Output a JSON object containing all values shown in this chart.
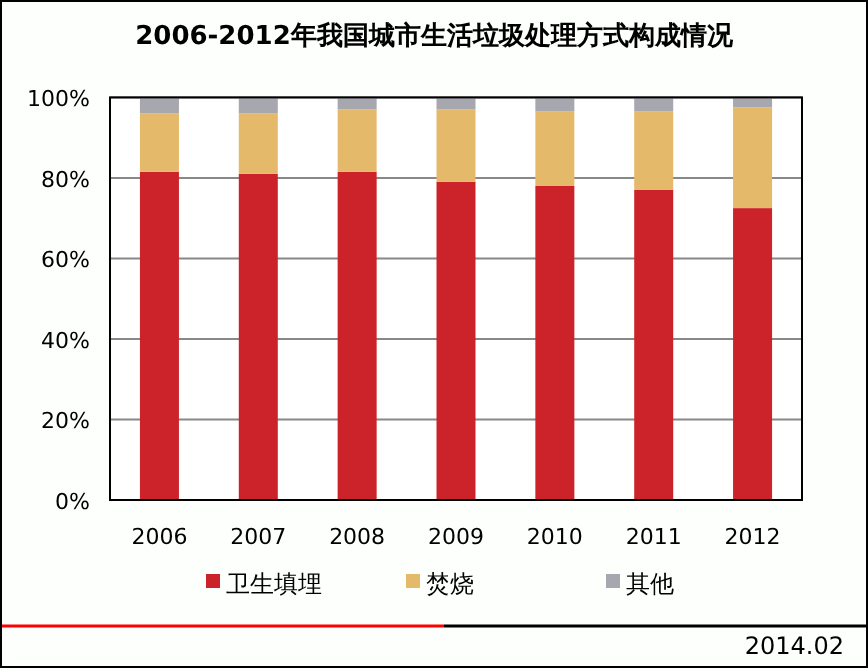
{
  "chart_data": {
    "type": "bar",
    "stacked": true,
    "title": "2006-2012年我国城市生活垃圾处理方式构成情况",
    "categories": [
      "2006",
      "2007",
      "2008",
      "2009",
      "2010",
      "2011",
      "2012"
    ],
    "series": [
      {
        "name": "卫生填埋",
        "color": "#cc2229",
        "values": [
          81.5,
          81,
          81.5,
          79,
          78,
          77,
          72.5
        ]
      },
      {
        "name": "焚烧",
        "color": "#e5b96a",
        "values": [
          14.5,
          15,
          15.5,
          18,
          18.5,
          19.5,
          25
        ]
      },
      {
        "name": "其他",
        "color": "#a7a7b0",
        "values": [
          4,
          4,
          3,
          3,
          3.5,
          3.5,
          2.5
        ]
      }
    ],
    "ylim": [
      0,
      100
    ],
    "yticks": [
      {
        "value": 0,
        "label": "0%"
      },
      {
        "value": 20,
        "label": "20%"
      },
      {
        "value": 40,
        "label": "40%"
      },
      {
        "value": 60,
        "label": "60%"
      },
      {
        "value": 80,
        "label": "80%"
      },
      {
        "value": 100,
        "label": "100%"
      }
    ],
    "grid": "y",
    "legend": "bottom",
    "annotations": [
      "2014.02"
    ]
  }
}
